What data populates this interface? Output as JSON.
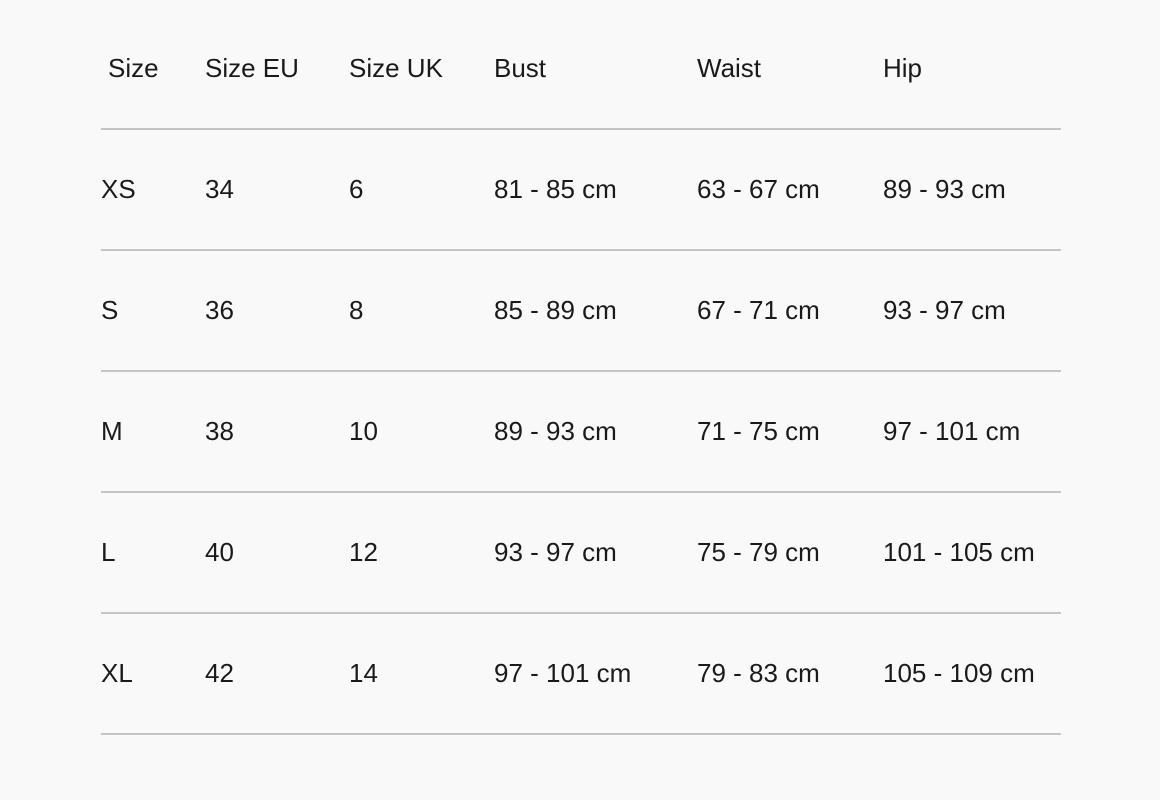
{
  "headers": [
    "Size",
    "Size EU",
    "Size UK",
    "Bust",
    "Waist",
    "Hip"
  ],
  "rows": [
    [
      "XS",
      "34",
      "6",
      "81 - 85 cm",
      "63 - 67 cm",
      "89 - 93 cm"
    ],
    [
      "S",
      "36",
      "8",
      "85 - 89 cm",
      "67 - 71 cm",
      "93 - 97 cm"
    ],
    [
      "M",
      "38",
      "10",
      "89 - 93 cm",
      "71 - 75 cm",
      "97 - 101 cm"
    ],
    [
      "L",
      "40",
      "12",
      "93 - 97 cm",
      "75 - 79 cm",
      "101 - 105 cm"
    ],
    [
      "XL",
      "42",
      "14",
      "97 - 101 cm",
      "79 - 83 cm",
      "105 - 109 cm"
    ]
  ]
}
